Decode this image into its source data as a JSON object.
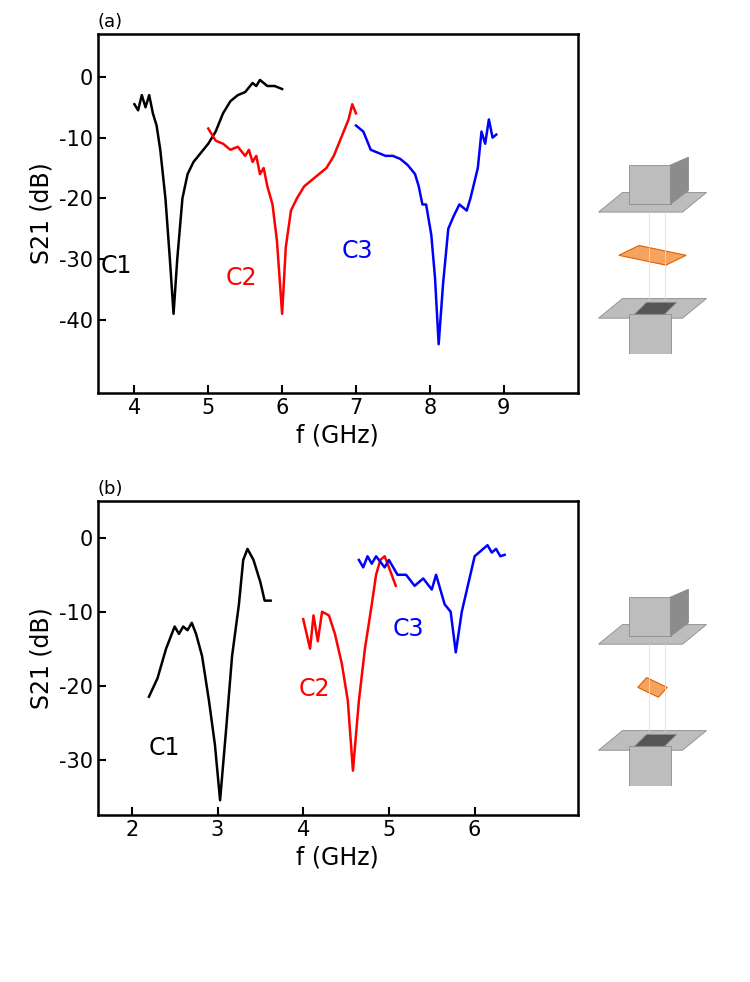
{
  "chart_data": [
    {
      "type": "line",
      "title": "(a)",
      "x_label": "f (GHz)",
      "y_label": "S21 (dB)",
      "xlim": [
        3.5,
        10
      ],
      "xticks": [
        4,
        5,
        6,
        7,
        8,
        9
      ],
      "ylim": [
        -52,
        7
      ],
      "yticks": [
        -40,
        -30,
        -20,
        -10,
        0
      ],
      "series": [
        {
          "name": "C1",
          "color": "#000000",
          "x": [
            4.0,
            4.05,
            4.1,
            4.15,
            4.2,
            4.25,
            4.3,
            4.35,
            4.42,
            4.48,
            4.53,
            4.58,
            4.65,
            4.72,
            4.8,
            4.9,
            5.0,
            5.1,
            5.2,
            5.3,
            5.4,
            5.5,
            5.6,
            5.65,
            5.7,
            5.8,
            5.9,
            6.0
          ],
          "values": [
            -4.5,
            -5.5,
            -3,
            -5,
            -3,
            -6,
            -8,
            -12,
            -20,
            -30,
            -39,
            -30,
            -20,
            -16,
            -14,
            -12.5,
            -11,
            -9,
            -6,
            -4,
            -3,
            -2.5,
            -1,
            -1.5,
            -0.5,
            -1.5,
            -1.5,
            -2
          ]
        },
        {
          "name": "C2",
          "color": "#ff0000",
          "x": [
            5.0,
            5.1,
            5.2,
            5.3,
            5.4,
            5.5,
            5.55,
            5.6,
            5.65,
            5.7,
            5.75,
            5.8,
            5.87,
            5.93,
            6.0,
            6.05,
            6.12,
            6.2,
            6.3,
            6.4,
            6.5,
            6.6,
            6.7,
            6.8,
            6.9,
            6.95,
            7.0
          ],
          "values": [
            -8.5,
            -10.5,
            -11,
            -12,
            -11.5,
            -13,
            -12,
            -14,
            -13,
            -16,
            -15,
            -18,
            -21,
            -27,
            -39,
            -28,
            -22,
            -20,
            -18,
            -17,
            -16,
            -15,
            -13,
            -10,
            -7,
            -4.5,
            -6
          ]
        },
        {
          "name": "C3",
          "color": "#0000ff",
          "x": [
            7.0,
            7.1,
            7.2,
            7.3,
            7.4,
            7.5,
            7.6,
            7.7,
            7.8,
            7.85,
            7.9,
            7.95,
            8.02,
            8.07,
            8.12,
            8.18,
            8.25,
            8.32,
            8.4,
            8.5,
            8.55,
            8.65,
            8.7,
            8.75,
            8.8,
            8.85,
            8.9
          ],
          "values": [
            -8,
            -9,
            -12,
            -12.5,
            -13,
            -13,
            -13.5,
            -14.5,
            -16,
            -18,
            -21,
            -21,
            -26,
            -33,
            -44,
            -34,
            -25,
            -23,
            -21,
            -22,
            -20,
            -15,
            -9,
            -11,
            -7,
            -10,
            -9.5
          ]
        }
      ]
    },
    {
      "type": "line",
      "title": "(b)",
      "x_label": "f (GHz)",
      "y_label": "S21 (dB)",
      "xlim": [
        1.6,
        7.2
      ],
      "xticks": [
        2,
        3,
        4,
        5,
        6
      ],
      "ylim": [
        -37.5,
        5
      ],
      "yticks": [
        -30,
        -20,
        -10,
        0
      ],
      "series": [
        {
          "name": "C1",
          "color": "#000000",
          "x": [
            2.2,
            2.3,
            2.4,
            2.5,
            2.55,
            2.6,
            2.65,
            2.7,
            2.75,
            2.82,
            2.9,
            2.97,
            3.03,
            3.1,
            3.17,
            3.25,
            3.3,
            3.35,
            3.42,
            3.5,
            3.55,
            3.62
          ],
          "values": [
            -21.5,
            -19,
            -15,
            -12,
            -13,
            -12,
            -12.5,
            -11.5,
            -13,
            -16,
            -22,
            -28,
            -35.5,
            -26,
            -16,
            -9,
            -3,
            -1.5,
            -3,
            -6,
            -8.5,
            -8.5
          ]
        },
        {
          "name": "C2",
          "color": "#ff0000",
          "x": [
            4.0,
            4.08,
            4.12,
            4.17,
            4.22,
            4.3,
            4.37,
            4.45,
            4.52,
            4.58,
            4.65,
            4.72,
            4.8,
            4.85,
            4.9,
            4.95,
            5.0,
            5.08
          ],
          "values": [
            -11,
            -15,
            -10.5,
            -14,
            -10,
            -10.5,
            -13,
            -17,
            -22,
            -31.5,
            -22,
            -15,
            -9,
            -5,
            -3,
            -2.5,
            -4,
            -6.5
          ]
        },
        {
          "name": "C3",
          "color": "#0000ff",
          "x": [
            4.65,
            4.7,
            4.75,
            4.8,
            4.85,
            4.95,
            5.0,
            5.1,
            5.2,
            5.3,
            5.4,
            5.5,
            5.55,
            5.65,
            5.72,
            5.78,
            5.85,
            5.95,
            6.0,
            6.1,
            6.15,
            6.2,
            6.25,
            6.3,
            6.35
          ],
          "values": [
            -3,
            -4,
            -2.5,
            -3.5,
            -2.5,
            -4,
            -3,
            -5,
            -5,
            -6.5,
            -5.5,
            -7,
            -5,
            -9,
            -10,
            -15.5,
            -10,
            -5,
            -2.5,
            -1.5,
            -1,
            -2,
            -1.5,
            -2.5,
            -2.3
          ]
        }
      ]
    }
  ]
}
